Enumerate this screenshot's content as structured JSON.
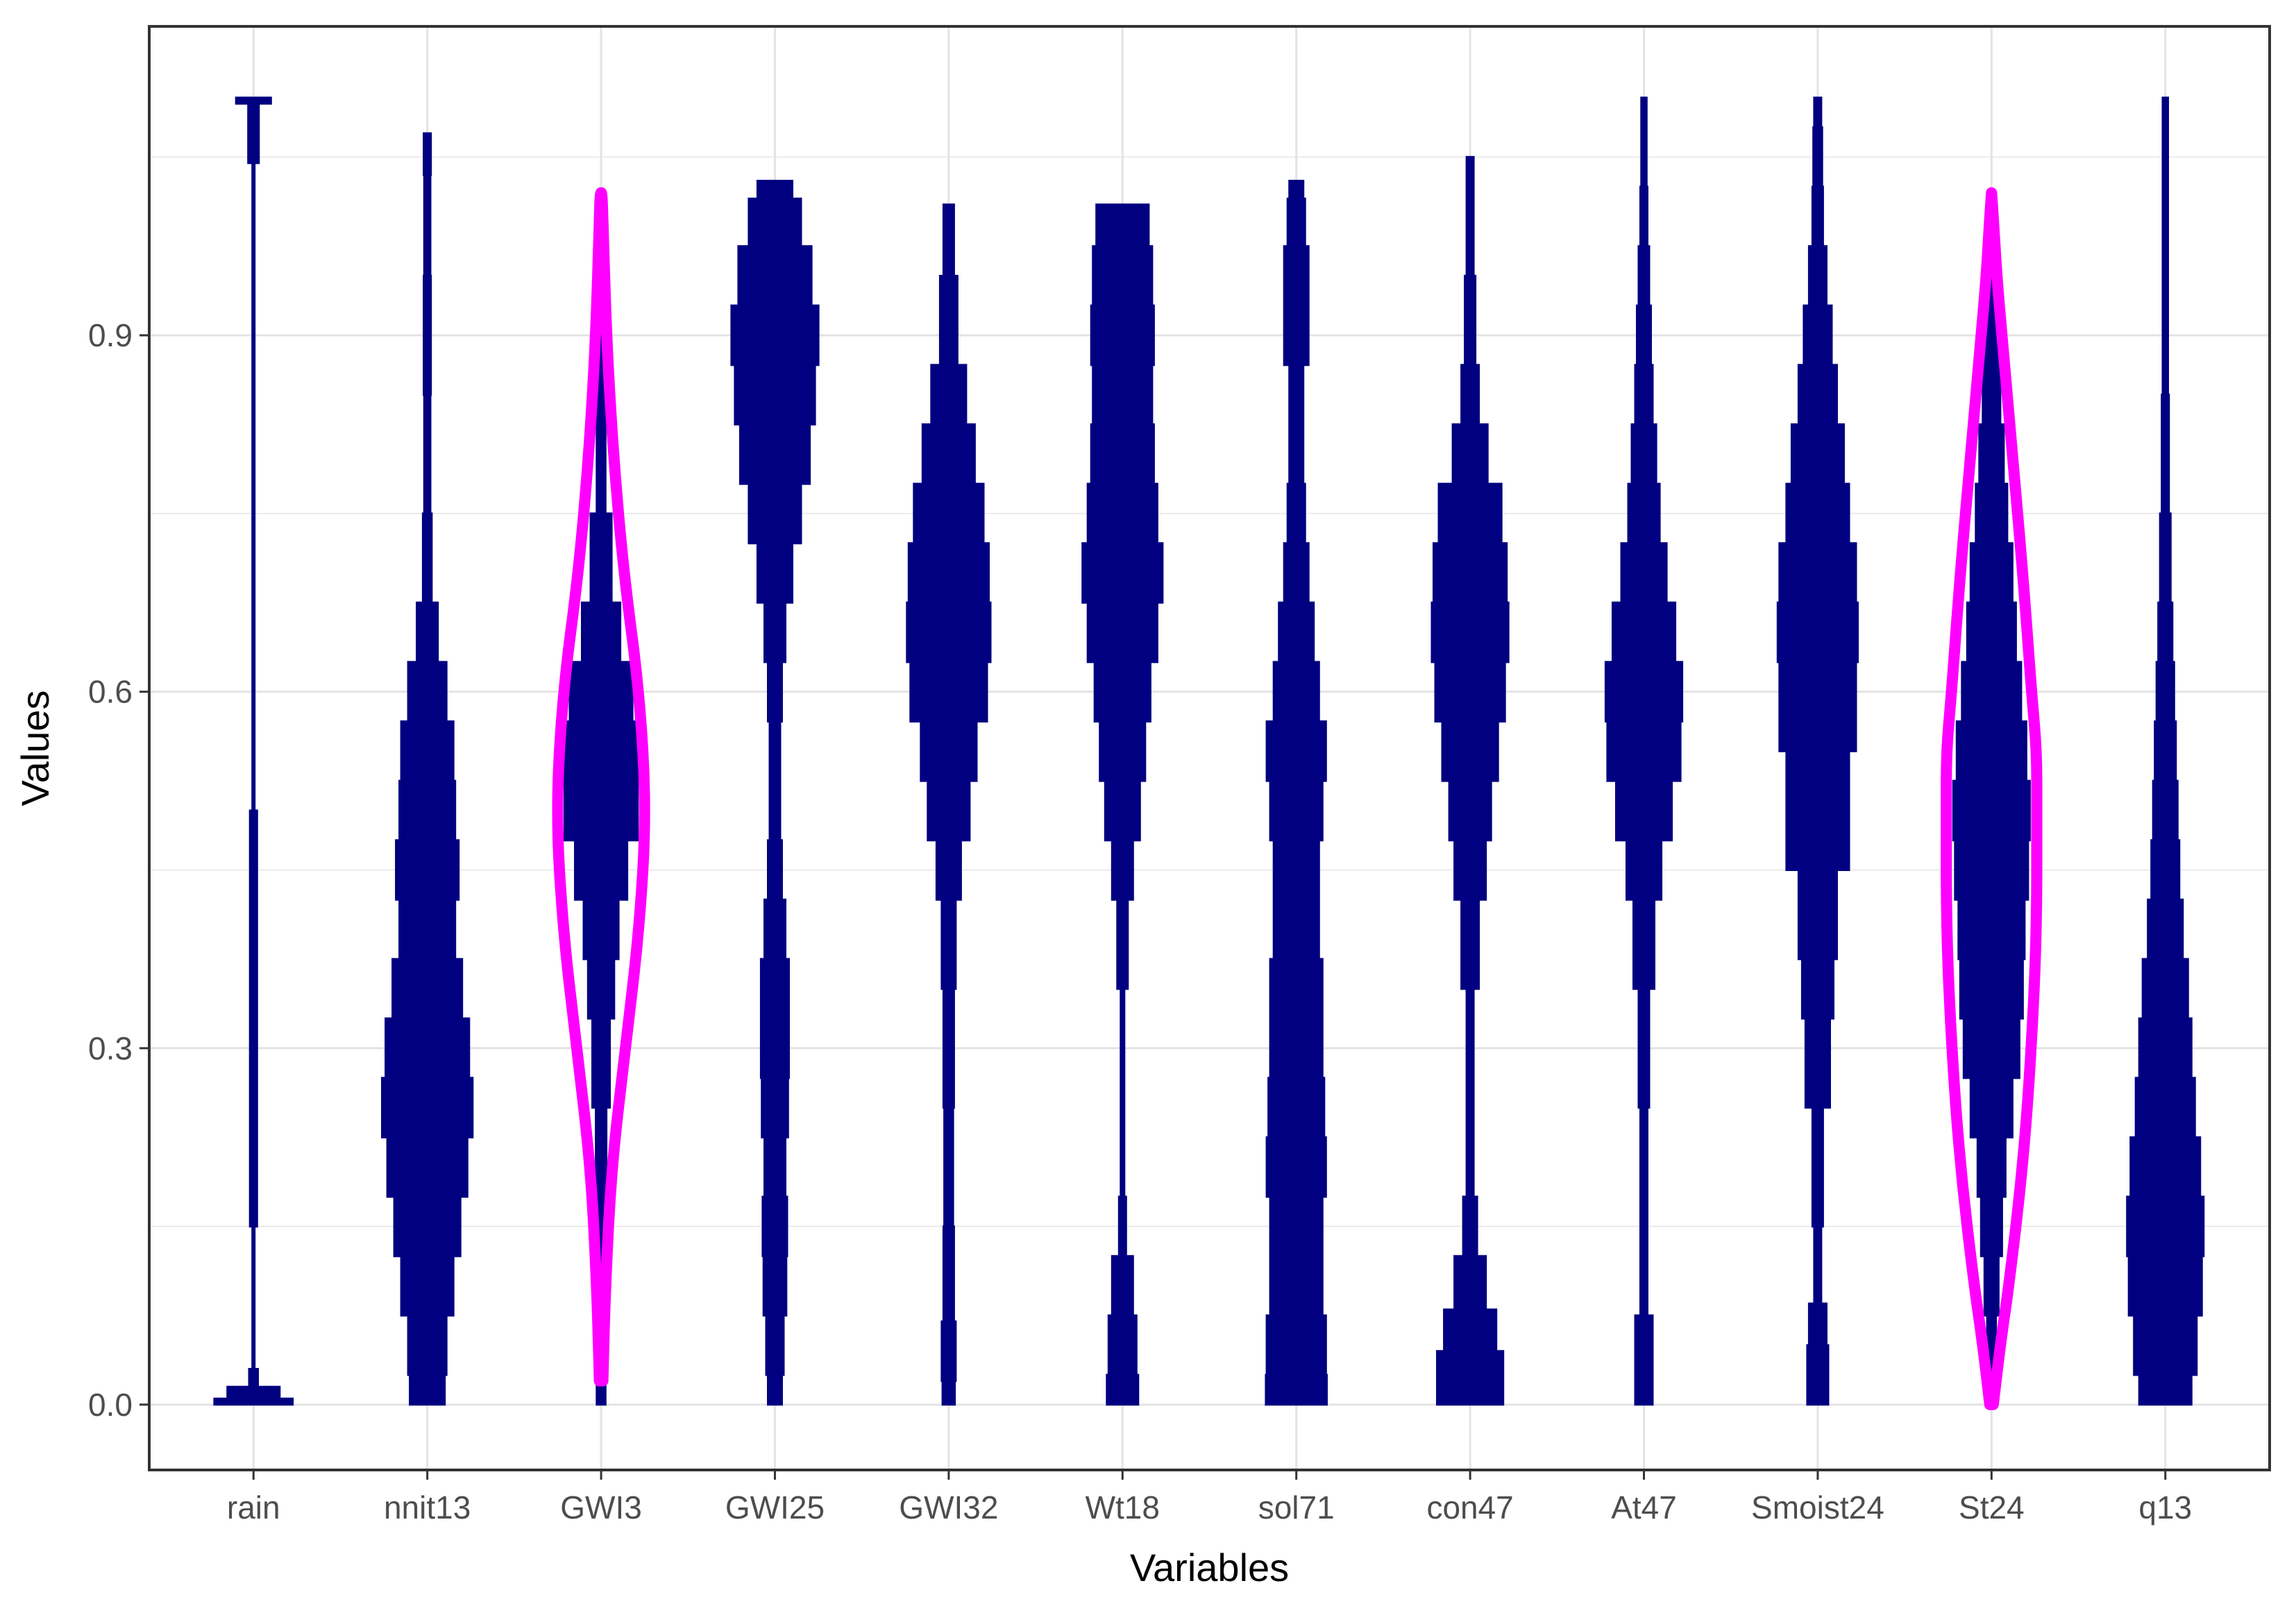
{
  "chart_data": {
    "type": "violin",
    "xlabel": "Variables",
    "ylabel": "Values",
    "ylim": [
      -0.055,
      1.16
    ],
    "y_ticks": [
      0.0,
      0.3,
      0.6,
      0.9
    ],
    "y_tick_labels": [
      "0.0",
      "0.3",
      "0.6",
      "0.9"
    ],
    "grid": true,
    "theme": "bw",
    "fill_color": "#000080",
    "highlight_color": "#ff00ff",
    "highlighted_categories": [
      "GWI3",
      "St24"
    ],
    "categories": [
      "rain",
      "nnit13",
      "GWI3",
      "GWI25",
      "GWI32",
      "Wt18",
      "sol71",
      "con47",
      "At47",
      "Smoist24",
      "St24",
      "q13"
    ],
    "violins": [
      {
        "name": "rain",
        "y": [
          0.0,
          0.01,
          0.02,
          0.04,
          0.1,
          0.2,
          0.4,
          0.6,
          0.8,
          1.0,
          1.09,
          1.1
        ],
        "half_width": [
          0.45,
          0.3,
          0.05,
          0.012,
          0.012,
          0.04,
          0.04,
          0.012,
          0.012,
          0.012,
          0.06,
          0.2
        ]
      },
      {
        "name": "nnit13",
        "y": [
          0.0,
          0.05,
          0.1,
          0.15,
          0.2,
          0.25,
          0.3,
          0.35,
          0.4,
          0.45,
          0.5,
          0.55,
          0.6,
          0.65,
          0.7,
          0.8,
          0.9,
          1.0,
          1.07
        ],
        "half_width": [
          0.2,
          0.22,
          0.3,
          0.38,
          0.46,
          0.52,
          0.48,
          0.4,
          0.32,
          0.36,
          0.32,
          0.3,
          0.22,
          0.12,
          0.05,
          0.035,
          0.04,
          0.035,
          0.04
        ]
      },
      {
        "name": "GWI3",
        "y": [
          0.0,
          0.05,
          0.1,
          0.2,
          0.3,
          0.35,
          0.4,
          0.45,
          0.5,
          0.55,
          0.6,
          0.65,
          0.7,
          0.8,
          0.9,
          1.0,
          1.02
        ],
        "half_width": [
          0.05,
          0.05,
          0.05,
          0.06,
          0.1,
          0.15,
          0.2,
          0.3,
          0.42,
          0.46,
          0.36,
          0.22,
          0.12,
          0.05,
          0.04,
          0.04,
          0.05
        ]
      },
      {
        "name": "GWI25",
        "y": [
          0.0,
          0.05,
          0.1,
          0.15,
          0.2,
          0.25,
          0.3,
          0.35,
          0.4,
          0.45,
          0.5,
          0.55,
          0.6,
          0.65,
          0.7,
          0.75,
          0.8,
          0.85,
          0.9,
          0.95,
          1.0,
          1.03
        ],
        "half_width": [
          0.08,
          0.1,
          0.13,
          0.14,
          0.12,
          0.15,
          0.16,
          0.16,
          0.12,
          0.08,
          0.06,
          0.06,
          0.08,
          0.12,
          0.2,
          0.3,
          0.4,
          0.46,
          0.5,
          0.42,
          0.3,
          0.2
        ]
      },
      {
        "name": "GWI32",
        "y": [
          0.0,
          0.04,
          0.1,
          0.2,
          0.3,
          0.4,
          0.45,
          0.5,
          0.55,
          0.6,
          0.65,
          0.7,
          0.75,
          0.8,
          0.85,
          0.9,
          1.0,
          1.01
        ],
        "half_width": [
          0.07,
          0.08,
          0.06,
          0.05,
          0.06,
          0.08,
          0.14,
          0.24,
          0.32,
          0.44,
          0.48,
          0.46,
          0.4,
          0.3,
          0.2,
          0.1,
          0.06,
          0.06
        ]
      },
      {
        "name": "Wt18",
        "y": [
          0.0,
          0.05,
          0.1,
          0.15,
          0.2,
          0.3,
          0.4,
          0.45,
          0.5,
          0.55,
          0.6,
          0.65,
          0.7,
          0.75,
          0.8,
          0.85,
          0.9,
          0.95,
          1.0,
          1.01
        ],
        "half_width": [
          0.18,
          0.16,
          0.12,
          0.04,
          0.02,
          0.02,
          0.06,
          0.12,
          0.2,
          0.26,
          0.32,
          0.4,
          0.46,
          0.4,
          0.36,
          0.34,
          0.36,
          0.34,
          0.3,
          0.3
        ]
      },
      {
        "name": "sol71",
        "y": [
          0.0,
          0.05,
          0.1,
          0.15,
          0.2,
          0.25,
          0.3,
          0.35,
          0.4,
          0.45,
          0.5,
          0.55,
          0.6,
          0.65,
          0.7,
          0.75,
          0.8,
          0.85,
          0.9,
          0.95,
          1.0,
          1.03
        ],
        "half_width": [
          0.35,
          0.34,
          0.3,
          0.3,
          0.34,
          0.32,
          0.3,
          0.3,
          0.26,
          0.26,
          0.3,
          0.34,
          0.26,
          0.2,
          0.14,
          0.1,
          0.08,
          0.08,
          0.14,
          0.14,
          0.1,
          0.08
        ]
      },
      {
        "name": "con47",
        "y": [
          0.0,
          0.03,
          0.06,
          0.1,
          0.15,
          0.2,
          0.3,
          0.4,
          0.45,
          0.5,
          0.55,
          0.6,
          0.65,
          0.7,
          0.75,
          0.8,
          0.85,
          0.9,
          1.0,
          1.05
        ],
        "half_width": [
          0.38,
          0.38,
          0.3,
          0.18,
          0.08,
          0.04,
          0.04,
          0.1,
          0.18,
          0.24,
          0.32,
          0.4,
          0.44,
          0.42,
          0.36,
          0.2,
          0.1,
          0.06,
          0.04,
          0.04
        ]
      },
      {
        "name": "At47",
        "y": [
          0.0,
          0.05,
          0.1,
          0.2,
          0.3,
          0.4,
          0.45,
          0.5,
          0.55,
          0.6,
          0.65,
          0.7,
          0.75,
          0.8,
          0.85,
          0.9,
          0.95,
          1.0,
          1.05,
          1.1
        ],
        "half_width": [
          0.1,
          0.1,
          0.04,
          0.04,
          0.06,
          0.12,
          0.2,
          0.32,
          0.42,
          0.44,
          0.36,
          0.26,
          0.18,
          0.14,
          0.1,
          0.08,
          0.06,
          0.04,
          0.03,
          0.03
        ]
      },
      {
        "name": "Smoist24",
        "y": [
          0.0,
          0.03,
          0.07,
          0.1,
          0.2,
          0.3,
          0.35,
          0.4,
          0.5,
          0.6,
          0.65,
          0.7,
          0.75,
          0.8,
          0.85,
          0.9,
          0.95,
          1.0,
          1.05,
          1.1
        ],
        "half_width": [
          0.12,
          0.12,
          0.1,
          0.04,
          0.06,
          0.14,
          0.18,
          0.22,
          0.36,
          0.44,
          0.46,
          0.44,
          0.36,
          0.3,
          0.22,
          0.16,
          0.1,
          0.06,
          0.05,
          0.04
        ]
      },
      {
        "name": "St24",
        "y": [
          0.0,
          0.05,
          0.1,
          0.15,
          0.2,
          0.25,
          0.3,
          0.35,
          0.4,
          0.45,
          0.5,
          0.55,
          0.6,
          0.65,
          0.7,
          0.75,
          0.8,
          0.85,
          0.9,
          0.95,
          1.0,
          1.02
        ],
        "half_width": [
          0.02,
          0.05,
          0.08,
          0.12,
          0.16,
          0.24,
          0.32,
          0.36,
          0.38,
          0.42,
          0.44,
          0.4,
          0.34,
          0.28,
          0.24,
          0.18,
          0.14,
          0.1,
          0.08,
          0.06,
          0.04,
          0.03
        ]
      },
      {
        "name": "q13",
        "y": [
          0.0,
          0.05,
          0.1,
          0.15,
          0.2,
          0.25,
          0.3,
          0.35,
          0.4,
          0.45,
          0.5,
          0.55,
          0.6,
          0.65,
          0.7,
          0.8,
          0.9,
          1.0,
          1.1
        ],
        "half_width": [
          0.3,
          0.36,
          0.42,
          0.44,
          0.4,
          0.34,
          0.3,
          0.26,
          0.2,
          0.16,
          0.14,
          0.12,
          0.1,
          0.08,
          0.06,
          0.04,
          0.03,
          0.03,
          0.03
        ]
      }
    ],
    "highlight_outlines": [
      {
        "name": "GWI3",
        "y": [
          0.02,
          0.1,
          0.2,
          0.3,
          0.4,
          0.5,
          0.6,
          0.7,
          0.8,
          0.9,
          1.0,
          1.02
        ],
        "half_width": [
          0.02,
          0.05,
          0.12,
          0.28,
          0.44,
          0.52,
          0.44,
          0.26,
          0.14,
          0.06,
          0.02,
          0.01
        ]
      },
      {
        "name": "St24",
        "y": [
          0.0,
          0.05,
          0.1,
          0.2,
          0.3,
          0.4,
          0.5,
          0.55,
          0.6,
          0.7,
          0.8,
          0.9,
          0.95,
          1.0,
          1.02
        ],
        "half_width": [
          0.02,
          0.1,
          0.2,
          0.36,
          0.46,
          0.52,
          0.52,
          0.52,
          0.46,
          0.36,
          0.24,
          0.12,
          0.06,
          0.02,
          0.0
        ]
      }
    ]
  }
}
